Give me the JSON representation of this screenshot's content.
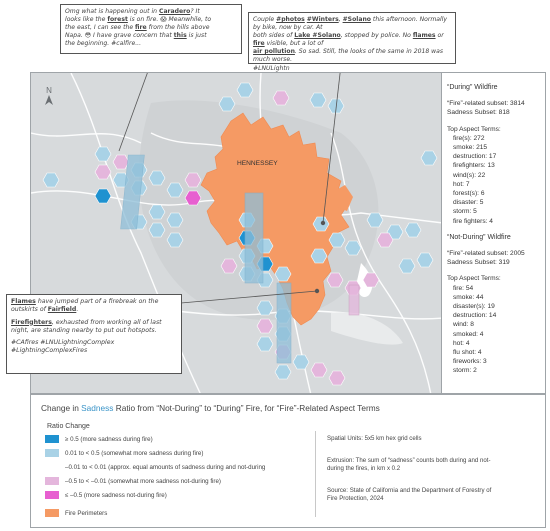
{
  "callouts": {
    "top_left": {
      "line1": "Omg what is happening out in ",
      "line1_u": "Caradero",
      "line1_end": "? It",
      "line2a": "looks like the ",
      "line2_u": "forest",
      "line2b": " is on fire. 😱 Meanwhile, to",
      "line3a": "the east, I can see the ",
      "line3_u": "fire",
      "line3b": " from the hills above",
      "line4": "Napa. 😳 I have grave concern that ",
      "line4_u": "this",
      "line4_end": " is just",
      "line5": "the beginning. #calfire..."
    },
    "top_right": {
      "line1a": "Couple ",
      "line1_u1": "#photos",
      "line1b": " ",
      "line1_u2": "#Winters",
      "line1c": ", ",
      "line1_u3": "#Solano",
      "line1d": " this afternoon. Normally by bike, now by car. At",
      "line2a": "both sides of ",
      "line2_u": "Lake #Solano",
      "line2b": ", stopped by police. No ",
      "line2_u2": "flames",
      "line2c": " or ",
      "line2_u3": "fire",
      "line2d": " visible, but a lot of",
      "line3_u": "air pollution",
      "line3b": ". So sad. Still, the looks of the same in 2018 was much worse.",
      "line4": "#LNULightn"
    },
    "bottom_left": {
      "p1_u": "Flames",
      "p1a": " have jumped part of a firebreak on the",
      "p1b": "outskirts of ",
      "p1_u2": "Fairfield",
      "p1c": ".",
      "p2_u": "Firefighters",
      "p2a": ", exhausted from working all of last",
      "p2b": "night, are standing nearby to put out hotspots.",
      "tags1": "#CAfires #LNULightningComplex",
      "tags2": "#LightningComplexFires"
    }
  },
  "map": {
    "north_label": "N",
    "place_label": "HENNESSEY"
  },
  "side_panel": {
    "during_title": "“During” Wildfire",
    "during_subset": "“Fire”-related subset: 3814",
    "during_sadness": "Sadness Subset: 818",
    "during_terms_title": "Top Aspect Terms:",
    "during_terms": [
      "fire(s): 272",
      "smoke: 215",
      "destruction: 17",
      "firefighters: 13",
      "wind(s): 22",
      "hot: 7",
      "forest(s): 6",
      "disaster: 5",
      "storm: 5",
      "fire fighters: 4"
    ],
    "not_title": "“Not-During” Wildfire",
    "not_subset": "“Fire”-related subset: 2005",
    "not_sadness": "Sadness Subset: 319",
    "not_terms_title": "Top Aspect Terms:",
    "not_terms": [
      "fire: 54",
      "smoke: 44",
      "disaster(s): 19",
      "destruction: 14",
      "wind: 8",
      "smoked: 4",
      "hot: 4",
      "flu shot: 4",
      "fireworks: 3",
      "storm: 2"
    ]
  },
  "legend": {
    "title_a": "Change in ",
    "title_sad": "Sadness",
    "title_b": " Ratio from “Not-During” to “During” Fire, for “Fire”-Related Aspect Terms",
    "ratio_header": "Ratio Change",
    "items": [
      {
        "label": "≥ 0.5 (more sadness during fire)",
        "color": "#1f92d0"
      },
      {
        "label": "0.01 to < 0.5 (somewhat more sadness during fire)",
        "color": "#a9d2e6"
      },
      {
        "label": "–0.01 to < 0.01 (approx. equal amounts of sadness during and not-during",
        "color": ""
      },
      {
        "label": "–0.5 to < –0.01 (somewhat more sadness not-during fire)",
        "color": "#e4b6dc"
      },
      {
        "label": "≤ –0.5 (more sadness not-during fire)",
        "color": "#e75fd0"
      }
    ],
    "fire_label": "Fire Perimeters",
    "fire_color": "#f59a64",
    "spatial": "Spatial Units: 5x5 km hex grid cells",
    "extrusion1": "Extrusion: The sum of “sadness” counts both during and not-",
    "extrusion2": "during the fires, in km x 0.2",
    "source1": "Source: State of California and the Department of Forestry of",
    "source2": "Fire Protection, 2024"
  }
}
